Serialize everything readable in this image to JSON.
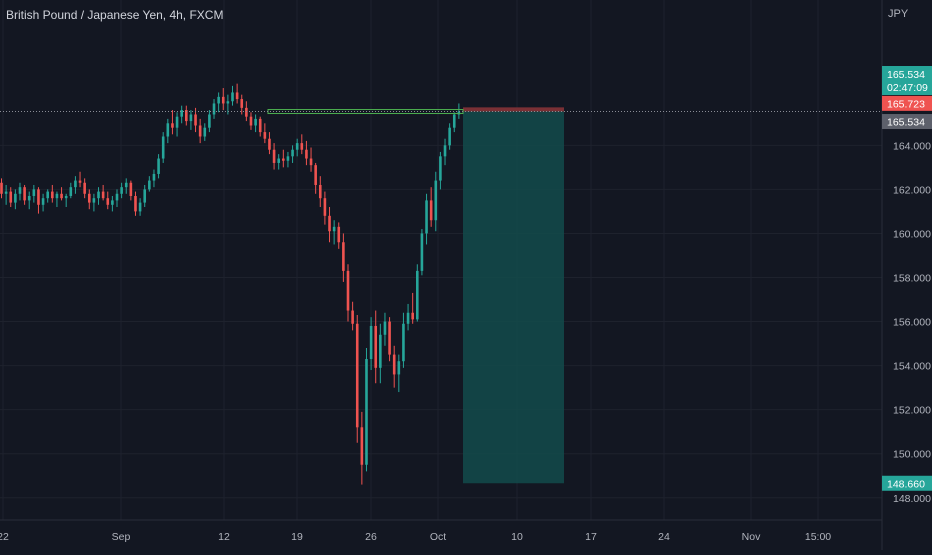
{
  "header": {
    "symbol_title": "British Pound / Japanese Yen, 4h, FXCM",
    "currency_unit": "JPY"
  },
  "colors": {
    "background": "#131722",
    "up_candle": "#26a69a",
    "down_candle": "#ef5350",
    "grid": "#1e222d",
    "axis_text": "#b2b5be",
    "profit_zone": "#134b4b",
    "stop_zone": "#7a3035",
    "entry_line": "#4caf50",
    "price_label_red": "#ef5350",
    "price_label_green": "#26a69a",
    "price_label_gray": "#5d606b"
  },
  "chart_data": {
    "type": "candlestick",
    "y_axis": {
      "ticks": [
        148,
        150,
        152,
        154,
        156,
        158,
        160,
        162,
        164
      ],
      "tick_labels": [
        "148.000",
        "150.000",
        "152.000",
        "154.000",
        "156.000",
        "158.000",
        "160.000",
        "162.000",
        "164.000"
      ],
      "range": [
        147.0,
        167.5
      ],
      "side": "right"
    },
    "x_axis": {
      "labels": [
        "22",
        "Sep",
        "12",
        "19",
        "26",
        "Oct",
        "10",
        "17",
        "24",
        "Nov",
        "15:00"
      ]
    },
    "grid": true,
    "series": [
      {
        "ohlc": [
          [
            162.3,
            162.5,
            161.6,
            161.8
          ],
          [
            161.8,
            162.2,
            161.3,
            161.9
          ],
          [
            161.9,
            162.1,
            161.2,
            161.4
          ],
          [
            161.4,
            162.0,
            161.1,
            161.8
          ],
          [
            161.8,
            162.3,
            161.5,
            162.1
          ],
          [
            162.1,
            162.2,
            161.3,
            161.5
          ],
          [
            161.5,
            161.9,
            161.1,
            161.7
          ],
          [
            161.7,
            162.2,
            161.4,
            162.0
          ],
          [
            162.0,
            162.1,
            160.9,
            161.3
          ],
          [
            161.3,
            161.8,
            161.0,
            161.6
          ],
          [
            161.6,
            162.0,
            161.4,
            161.9
          ],
          [
            161.9,
            162.2,
            161.4,
            161.6
          ],
          [
            161.6,
            161.9,
            161.2,
            161.8
          ],
          [
            161.8,
            162.1,
            161.5,
            161.6
          ],
          [
            161.6,
            161.8,
            161.2,
            161.7
          ],
          [
            161.7,
            162.3,
            161.6,
            162.1
          ],
          [
            162.1,
            162.6,
            161.8,
            162.4
          ],
          [
            162.4,
            162.8,
            162.1,
            162.3
          ],
          [
            162.3,
            162.5,
            161.6,
            161.8
          ],
          [
            161.8,
            162.0,
            161.1,
            161.4
          ],
          [
            161.4,
            161.8,
            161.0,
            161.6
          ],
          [
            161.6,
            162.1,
            161.3,
            161.9
          ],
          [
            161.9,
            162.2,
            161.5,
            161.6
          ],
          [
            161.6,
            161.9,
            161.1,
            161.3
          ],
          [
            161.3,
            161.7,
            161.0,
            161.5
          ],
          [
            161.5,
            162.0,
            161.2,
            161.8
          ],
          [
            161.8,
            162.3,
            161.6,
            162.1
          ],
          [
            162.1,
            162.5,
            161.8,
            162.3
          ],
          [
            162.3,
            162.4,
            161.5,
            161.7
          ],
          [
            161.7,
            161.9,
            160.8,
            161.0
          ],
          [
            161.0,
            161.6,
            160.8,
            161.4
          ],
          [
            161.4,
            162.2,
            161.2,
            162.0
          ],
          [
            162.0,
            162.6,
            161.9,
            162.4
          ],
          [
            162.4,
            162.9,
            162.1,
            162.7
          ],
          [
            162.7,
            163.6,
            162.5,
            163.4
          ],
          [
            163.4,
            164.6,
            163.2,
            164.4
          ],
          [
            164.4,
            165.2,
            164.1,
            165.0
          ],
          [
            165.0,
            165.6,
            164.5,
            164.8
          ],
          [
            164.8,
            165.5,
            164.4,
            165.3
          ],
          [
            165.3,
            165.8,
            165.0,
            165.6
          ],
          [
            165.6,
            165.8,
            164.9,
            165.1
          ],
          [
            165.1,
            165.6,
            164.7,
            165.4
          ],
          [
            165.4,
            165.7,
            164.6,
            164.9
          ],
          [
            164.9,
            165.2,
            164.1,
            164.4
          ],
          [
            164.4,
            165.0,
            164.2,
            164.8
          ],
          [
            164.8,
            165.6,
            164.6,
            165.4
          ],
          [
            165.4,
            166.1,
            165.2,
            165.9
          ],
          [
            165.9,
            166.4,
            165.5,
            166.2
          ],
          [
            166.2,
            166.6,
            165.6,
            165.9
          ],
          [
            165.9,
            166.3,
            165.4,
            166.0
          ],
          [
            166.0,
            166.7,
            165.8,
            166.4
          ],
          [
            166.4,
            166.8,
            165.9,
            166.1
          ],
          [
            166.1,
            166.3,
            165.4,
            165.7
          ],
          [
            165.7,
            166.0,
            165.1,
            165.3
          ],
          [
            165.3,
            165.5,
            164.7,
            164.9
          ],
          [
            164.9,
            165.4,
            164.6,
            165.2
          ],
          [
            165.2,
            165.3,
            164.4,
            164.6
          ],
          [
            164.6,
            165.0,
            164.1,
            164.3
          ],
          [
            164.3,
            164.6,
            163.6,
            163.8
          ],
          [
            163.8,
            164.1,
            162.9,
            163.2
          ],
          [
            163.2,
            163.6,
            162.9,
            163.4
          ],
          [
            163.4,
            163.8,
            163.0,
            163.3
          ],
          [
            163.3,
            163.7,
            163.0,
            163.5
          ],
          [
            163.5,
            164.0,
            163.2,
            163.8
          ],
          [
            163.8,
            164.3,
            163.5,
            164.1
          ],
          [
            164.1,
            164.5,
            163.6,
            163.8
          ],
          [
            163.8,
            164.2,
            163.1,
            163.4
          ],
          [
            163.4,
            163.9,
            162.8,
            163.1
          ],
          [
            163.1,
            163.2,
            161.8,
            162.2
          ],
          [
            162.2,
            162.6,
            161.2,
            161.6
          ],
          [
            161.6,
            161.9,
            160.4,
            160.8
          ],
          [
            160.8,
            161.2,
            159.6,
            160.1
          ],
          [
            160.1,
            160.6,
            159.5,
            160.3
          ],
          [
            160.3,
            160.5,
            159.3,
            159.6
          ],
          [
            159.6,
            160.0,
            157.8,
            158.3
          ],
          [
            158.3,
            158.6,
            156.0,
            156.5
          ],
          [
            156.5,
            156.9,
            155.6,
            155.9
          ],
          [
            155.9,
            156.3,
            150.5,
            151.2
          ],
          [
            151.2,
            151.9,
            148.6,
            149.5
          ],
          [
            149.5,
            154.8,
            149.2,
            154.3
          ],
          [
            154.3,
            156.2,
            153.8,
            155.8
          ],
          [
            155.8,
            156.5,
            153.2,
            153.9
          ],
          [
            153.9,
            155.9,
            153.2,
            155.4
          ],
          [
            155.4,
            156.4,
            154.9,
            156.0
          ],
          [
            156.0,
            156.2,
            154.2,
            154.5
          ],
          [
            154.5,
            154.9,
            153.0,
            153.6
          ],
          [
            153.6,
            154.5,
            152.8,
            154.2
          ],
          [
            154.2,
            156.4,
            153.9,
            155.9
          ],
          [
            155.9,
            156.8,
            155.6,
            156.4
          ],
          [
            156.4,
            157.3,
            155.9,
            156.1
          ],
          [
            156.1,
            158.6,
            156.0,
            158.3
          ],
          [
            158.3,
            160.2,
            158.1,
            160.0
          ],
          [
            160.0,
            161.8,
            159.5,
            161.5
          ],
          [
            161.5,
            162.1,
            160.3,
            160.6
          ],
          [
            160.6,
            162.8,
            160.1,
            162.4
          ],
          [
            162.4,
            163.7,
            162.0,
            163.5
          ],
          [
            163.5,
            164.3,
            163.1,
            164.0
          ],
          [
            164.0,
            165.0,
            163.8,
            164.8
          ],
          [
            164.8,
            165.5,
            164.6,
            165.4
          ],
          [
            165.4,
            165.9,
            165.2,
            165.534
          ]
        ]
      }
    ],
    "position": {
      "entry": 165.534,
      "stop": 165.723,
      "target": 148.66
    },
    "price_labels": [
      {
        "value": "165.723",
        "kind": "stop"
      },
      {
        "value": "165.534",
        "kind": "last"
      },
      {
        "value": "02:47:09",
        "kind": "countdown"
      },
      {
        "value": "165.534",
        "kind": "entry"
      },
      {
        "value": "148.660",
        "kind": "target"
      }
    ]
  }
}
